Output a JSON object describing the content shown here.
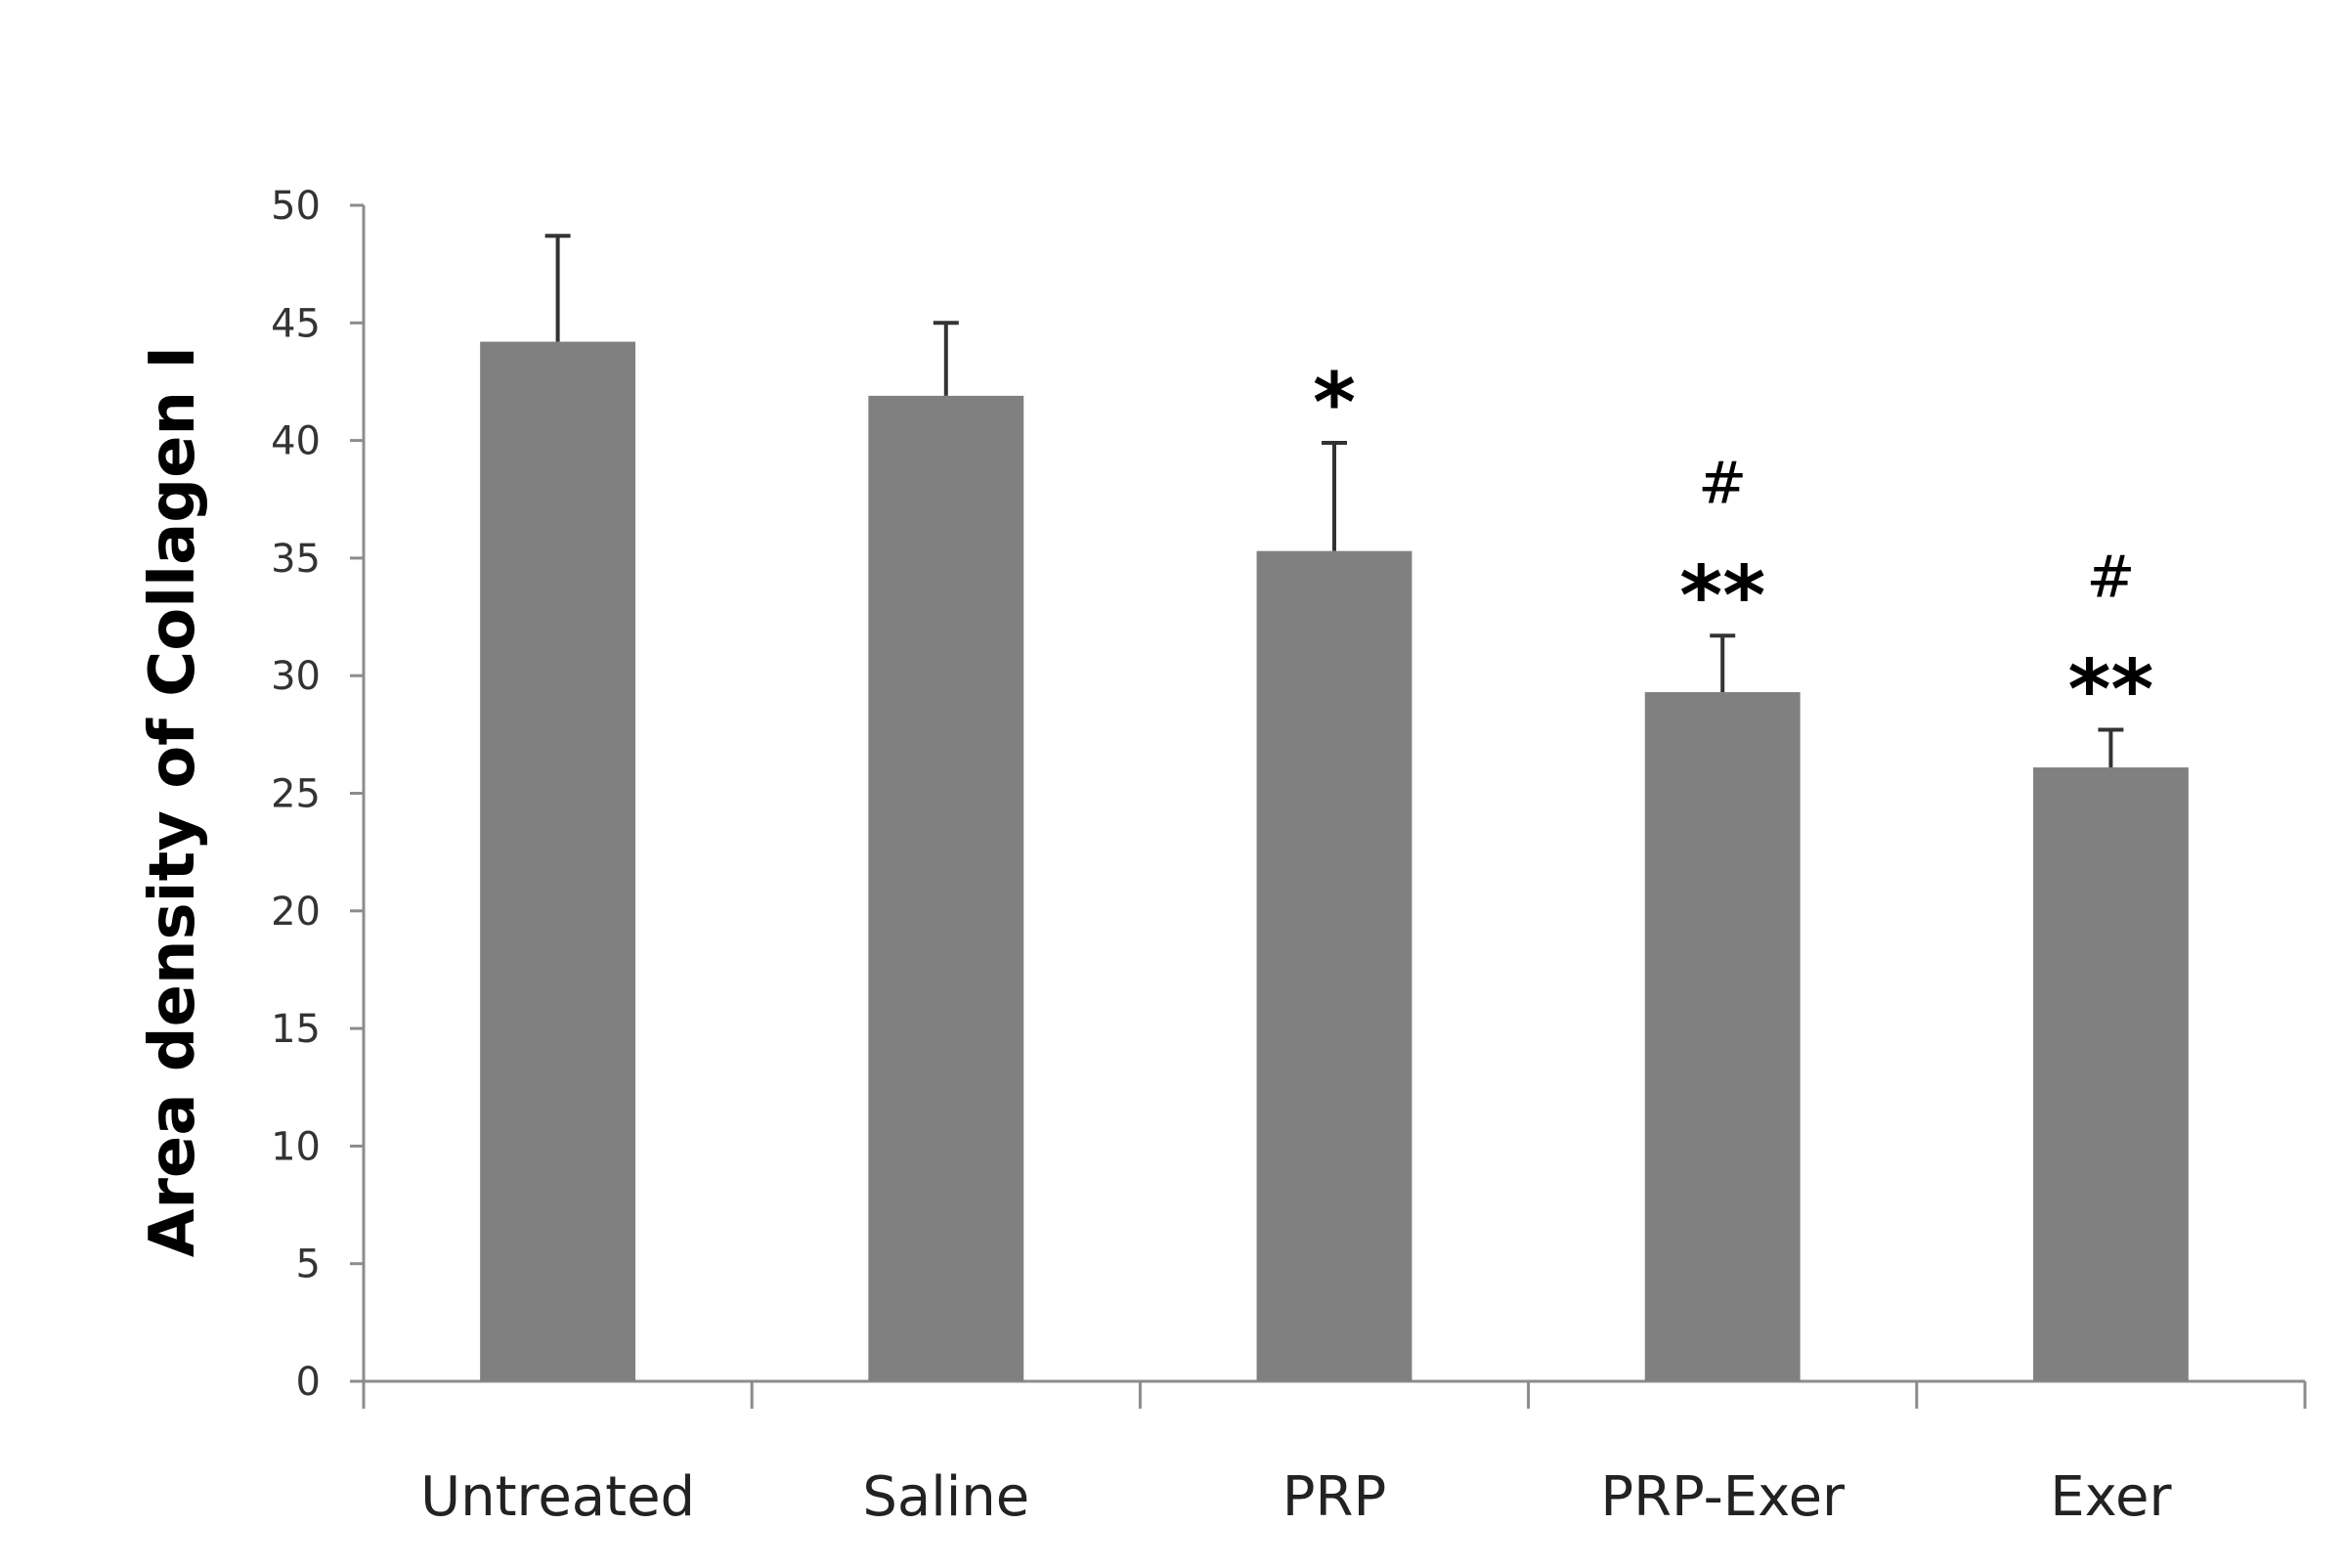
{
  "chart_data": {
    "type": "bar",
    "title": "",
    "xlabel": "",
    "ylabel": "Area density of Collagen I",
    "ylim": [
      0,
      50
    ],
    "yticks": [
      0,
      5,
      10,
      15,
      20,
      25,
      30,
      35,
      40,
      45,
      50
    ],
    "grid": false,
    "legend": "none",
    "bar_color": "#808080",
    "categories": [
      "Untreated",
      "Saline",
      "PRP",
      "PRP-Exer",
      "Exer"
    ],
    "values": [
      44.2,
      41.9,
      35.3,
      29.3,
      26.1
    ],
    "errors": [
      4.5,
      3.1,
      4.6,
      2.4,
      1.6
    ],
    "annotations": [
      {
        "category": "Untreated",
        "marks": []
      },
      {
        "category": "Saline",
        "marks": []
      },
      {
        "category": "PRP",
        "marks": [
          "*"
        ]
      },
      {
        "category": "PRP-Exer",
        "marks": [
          "#",
          "**"
        ]
      },
      {
        "category": "Exer",
        "marks": [
          "#",
          "**"
        ]
      }
    ]
  }
}
